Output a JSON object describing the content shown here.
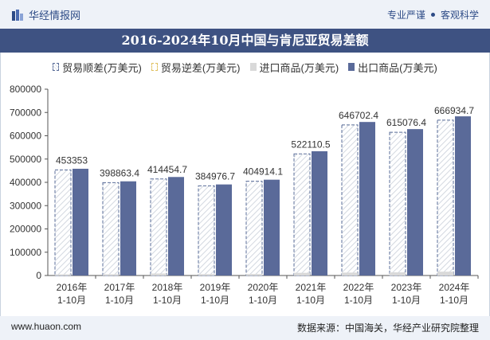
{
  "header": {
    "brand": "华经情报网",
    "tagline_left": "专业严谨",
    "tagline_right": "客观科学"
  },
  "footer": {
    "site": "www.huaon.com",
    "source": "数据来源：中国海关，华经产业研究院整理"
  },
  "colors": {
    "title_bg": "#3e5282",
    "export_bar": "#5a6a99",
    "import_bar": "#d9d9d9",
    "surplus_bar_border": "#5a6d99",
    "deficit_bar_border": "#e0c060"
  },
  "chart_data": {
    "type": "bar",
    "title": "2016-2024年10月中国与肯尼亚贸易差额",
    "categories": [
      "2016年\n1-10月",
      "2017年\n1-10月",
      "2018年\n1-10月",
      "2019年\n1-10月",
      "2020年\n1-10月",
      "2021年\n1-10月",
      "2022年\n1-10月",
      "2023年\n1-10月",
      "2024年\n1-10月"
    ],
    "series": [
      {
        "name": "贸易顺差(万美元)",
        "values": [
          453353,
          398863.4,
          414454.7,
          384976.7,
          404914.1,
          522110.5,
          646702.4,
          615076.4,
          666934.7
        ]
      },
      {
        "name": "贸易逆差(万美元)",
        "values": [
          0,
          0,
          0,
          0,
          0,
          0,
          0,
          0,
          0
        ]
      },
      {
        "name": "进口商品(万美元)",
        "values": [
          5000,
          5500,
          8500,
          6000,
          6500,
          11500,
          12500,
          13500,
          16500
        ]
      },
      {
        "name": "出口商品(万美元)",
        "values": [
          458353,
          404363.4,
          422954.7,
          390976.7,
          411414.1,
          533610.5,
          659202.4,
          628576.4,
          683434.7
        ]
      }
    ],
    "data_labels": [
      "453353",
      "398863.4",
      "414454.7",
      "384976.7",
      "404914.1",
      "522110.5",
      "646702.4",
      "615076.4",
      "666934.7"
    ],
    "y_ticks": [
      "0",
      "100000",
      "200000",
      "300000",
      "400000",
      "500000",
      "600000",
      "700000",
      "800000"
    ],
    "ylim": [
      0,
      800000
    ],
    "xlabel": "",
    "ylabel": "",
    "legend_position": "top",
    "grid": false
  }
}
